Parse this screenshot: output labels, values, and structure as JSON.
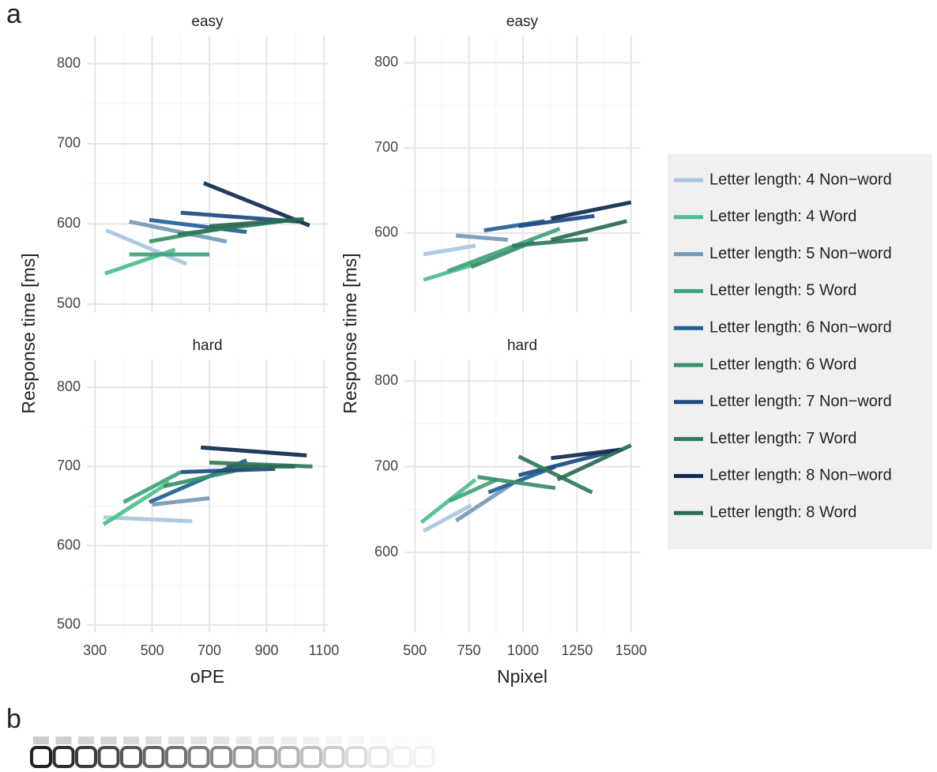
{
  "panel_label_a": "a",
  "panel_label_b": "b",
  "legend": {
    "entries": [
      {
        "name": "Letter length: 4 Non−word",
        "color": "#a9c6e0"
      },
      {
        "name": "Letter length: 4 Word",
        "color": "#4dbf8c"
      },
      {
        "name": "Letter length: 5 Non−word",
        "color": "#7399b8"
      },
      {
        "name": "Letter length: 5 Word",
        "color": "#3fa37a"
      },
      {
        "name": "Letter length: 6 Non−word",
        "color": "#1f5f96"
      },
      {
        "name": "Letter length: 6 Word",
        "color": "#3a8e68"
      },
      {
        "name": "Letter length: 7 Non−word",
        "color": "#1d4a80"
      },
      {
        "name": "Letter length: 7 Word",
        "color": "#2f7a5a"
      },
      {
        "name": "Letter length: 8 Non−word",
        "color": "#0e2a50"
      },
      {
        "name": "Letter length: 8 Word",
        "color": "#2a6a50"
      }
    ]
  },
  "chart_data": [
    {
      "type": "line",
      "title": "easy",
      "y_label": "Response time [ms]",
      "xlim": [
        272,
        1114
      ],
      "xticks": [
        300,
        500,
        700,
        900,
        1100
      ],
      "ylim": [
        490,
        835
      ],
      "yticks": [
        500,
        600,
        700,
        800
      ],
      "grid": true,
      "series": [
        {
          "color": "#a9c6e0",
          "x": [
            340,
            620
          ],
          "values": [
            592,
            550
          ]
        },
        {
          "color": "#4dbf8c",
          "x": [
            335,
            580
          ],
          "values": [
            538,
            568
          ]
        },
        {
          "color": "#7399b8",
          "x": [
            420,
            760
          ],
          "values": [
            603,
            578
          ]
        },
        {
          "color": "#3fa37a",
          "x": [
            420,
            700
          ],
          "values": [
            562,
            562
          ]
        },
        {
          "color": "#1f5f96",
          "x": [
            490,
            830
          ],
          "values": [
            605,
            590
          ]
        },
        {
          "color": "#3a8e68",
          "x": [
            490,
            830
          ],
          "values": [
            578,
            600
          ]
        },
        {
          "color": "#1d4a80",
          "x": [
            600,
            1010
          ],
          "values": [
            614,
            603
          ]
        },
        {
          "color": "#2f7a5a",
          "x": [
            590,
            990
          ],
          "values": [
            587,
            605
          ]
        },
        {
          "color": "#0e2a50",
          "x": [
            680,
            1050
          ],
          "values": [
            651,
            598
          ]
        },
        {
          "color": "#2a6a50",
          "x": [
            700,
            1030
          ],
          "values": [
            597,
            606
          ]
        }
      ]
    },
    {
      "type": "line",
      "title": "hard",
      "x_label": "oPE",
      "xlim": [
        272,
        1114
      ],
      "xticks": [
        300,
        500,
        700,
        900,
        1100
      ],
      "ylim": [
        491,
        835
      ],
      "yticks": [
        500,
        600,
        700,
        800
      ],
      "grid": true,
      "series": [
        {
          "color": "#a9c6e0",
          "x": [
            330,
            640
          ],
          "values": [
            636,
            631
          ]
        },
        {
          "color": "#4dbf8c",
          "x": [
            330,
            560
          ],
          "values": [
            627,
            680
          ]
        },
        {
          "color": "#7399b8",
          "x": [
            500,
            700
          ],
          "values": [
            652,
            660
          ]
        },
        {
          "color": "#3fa37a",
          "x": [
            400,
            600
          ],
          "values": [
            655,
            693
          ]
        },
        {
          "color": "#1f5f96",
          "x": [
            490,
            830
          ],
          "values": [
            655,
            708
          ]
        },
        {
          "color": "#3a8e68",
          "x": [
            540,
            880
          ],
          "values": [
            675,
            702
          ]
        },
        {
          "color": "#1d4a80",
          "x": [
            600,
            930
          ],
          "values": [
            693,
            697
          ]
        },
        {
          "color": "#2f7a5a",
          "x": [
            700,
            1060
          ],
          "values": [
            705,
            700
          ]
        },
        {
          "color": "#0e2a50",
          "x": [
            670,
            1040
          ],
          "values": [
            724,
            714
          ]
        },
        {
          "color": "#2a6a50",
          "x": [
            760,
            1000
          ],
          "values": [
            700,
            700
          ]
        }
      ]
    },
    {
      "type": "line",
      "title": "easy",
      "y_label": "Response time [ms]",
      "xlim": [
        452,
        1541
      ],
      "xticks": [
        500,
        750,
        1000,
        1250,
        1500
      ],
      "ylim": [
        507,
        832
      ],
      "yticks": [
        600,
        700,
        800
      ],
      "grid": true,
      "series": [
        {
          "color": "#a9c6e0",
          "x": [
            540,
            780
          ],
          "values": [
            575,
            585
          ]
        },
        {
          "color": "#4dbf8c",
          "x": [
            540,
            800
          ],
          "values": [
            545,
            565
          ]
        },
        {
          "color": "#7399b8",
          "x": [
            690,
            930
          ],
          "values": [
            597,
            592
          ]
        },
        {
          "color": "#3fa37a",
          "x": [
            650,
            1170
          ],
          "values": [
            555,
            605
          ]
        },
        {
          "color": "#1f5f96",
          "x": [
            820,
            1100
          ],
          "values": [
            603,
            614
          ]
        },
        {
          "color": "#3a8e68",
          "x": [
            760,
            1050
          ],
          "values": [
            560,
            590
          ]
        },
        {
          "color": "#1d4a80",
          "x": [
            980,
            1330
          ],
          "values": [
            608,
            620
          ]
        },
        {
          "color": "#2f7a5a",
          "x": [
            950,
            1300
          ],
          "values": [
            585,
            593
          ]
        },
        {
          "color": "#0e2a50",
          "x": [
            1130,
            1500
          ],
          "values": [
            617,
            636
          ]
        },
        {
          "color": "#2a6a50",
          "x": [
            1130,
            1480
          ],
          "values": [
            592,
            614
          ]
        }
      ]
    },
    {
      "type": "line",
      "title": "hard",
      "x_label": "Npixel",
      "xlim": [
        452,
        1541
      ],
      "xticks": [
        500,
        750,
        1000,
        1250,
        1500
      ],
      "ylim": [
        507,
        825
      ],
      "yticks": [
        600,
        700,
        800
      ],
      "grid": true,
      "series": [
        {
          "color": "#a9c6e0",
          "x": [
            540,
            760
          ],
          "values": [
            625,
            655
          ]
        },
        {
          "color": "#4dbf8c",
          "x": [
            530,
            780
          ],
          "values": [
            635,
            685
          ]
        },
        {
          "color": "#7399b8",
          "x": [
            690,
            950
          ],
          "values": [
            637,
            680
          ]
        },
        {
          "color": "#3fa37a",
          "x": [
            660,
            880
          ],
          "values": [
            660,
            685
          ]
        },
        {
          "color": "#1f5f96",
          "x": [
            840,
            1150
          ],
          "values": [
            670,
            700
          ]
        },
        {
          "color": "#3a8e68",
          "x": [
            790,
            1150
          ],
          "values": [
            688,
            675
          ]
        },
        {
          "color": "#1d4a80",
          "x": [
            980,
            1450
          ],
          "values": [
            690,
            720
          ]
        },
        {
          "color": "#2f7a5a",
          "x": [
            980,
            1320
          ],
          "values": [
            712,
            670
          ]
        },
        {
          "color": "#0e2a50",
          "x": [
            1130,
            1460
          ],
          "values": [
            710,
            720
          ]
        },
        {
          "color": "#2a6a50",
          "x": [
            1160,
            1500
          ],
          "values": [
            685,
            725
          ]
        }
      ]
    }
  ]
}
